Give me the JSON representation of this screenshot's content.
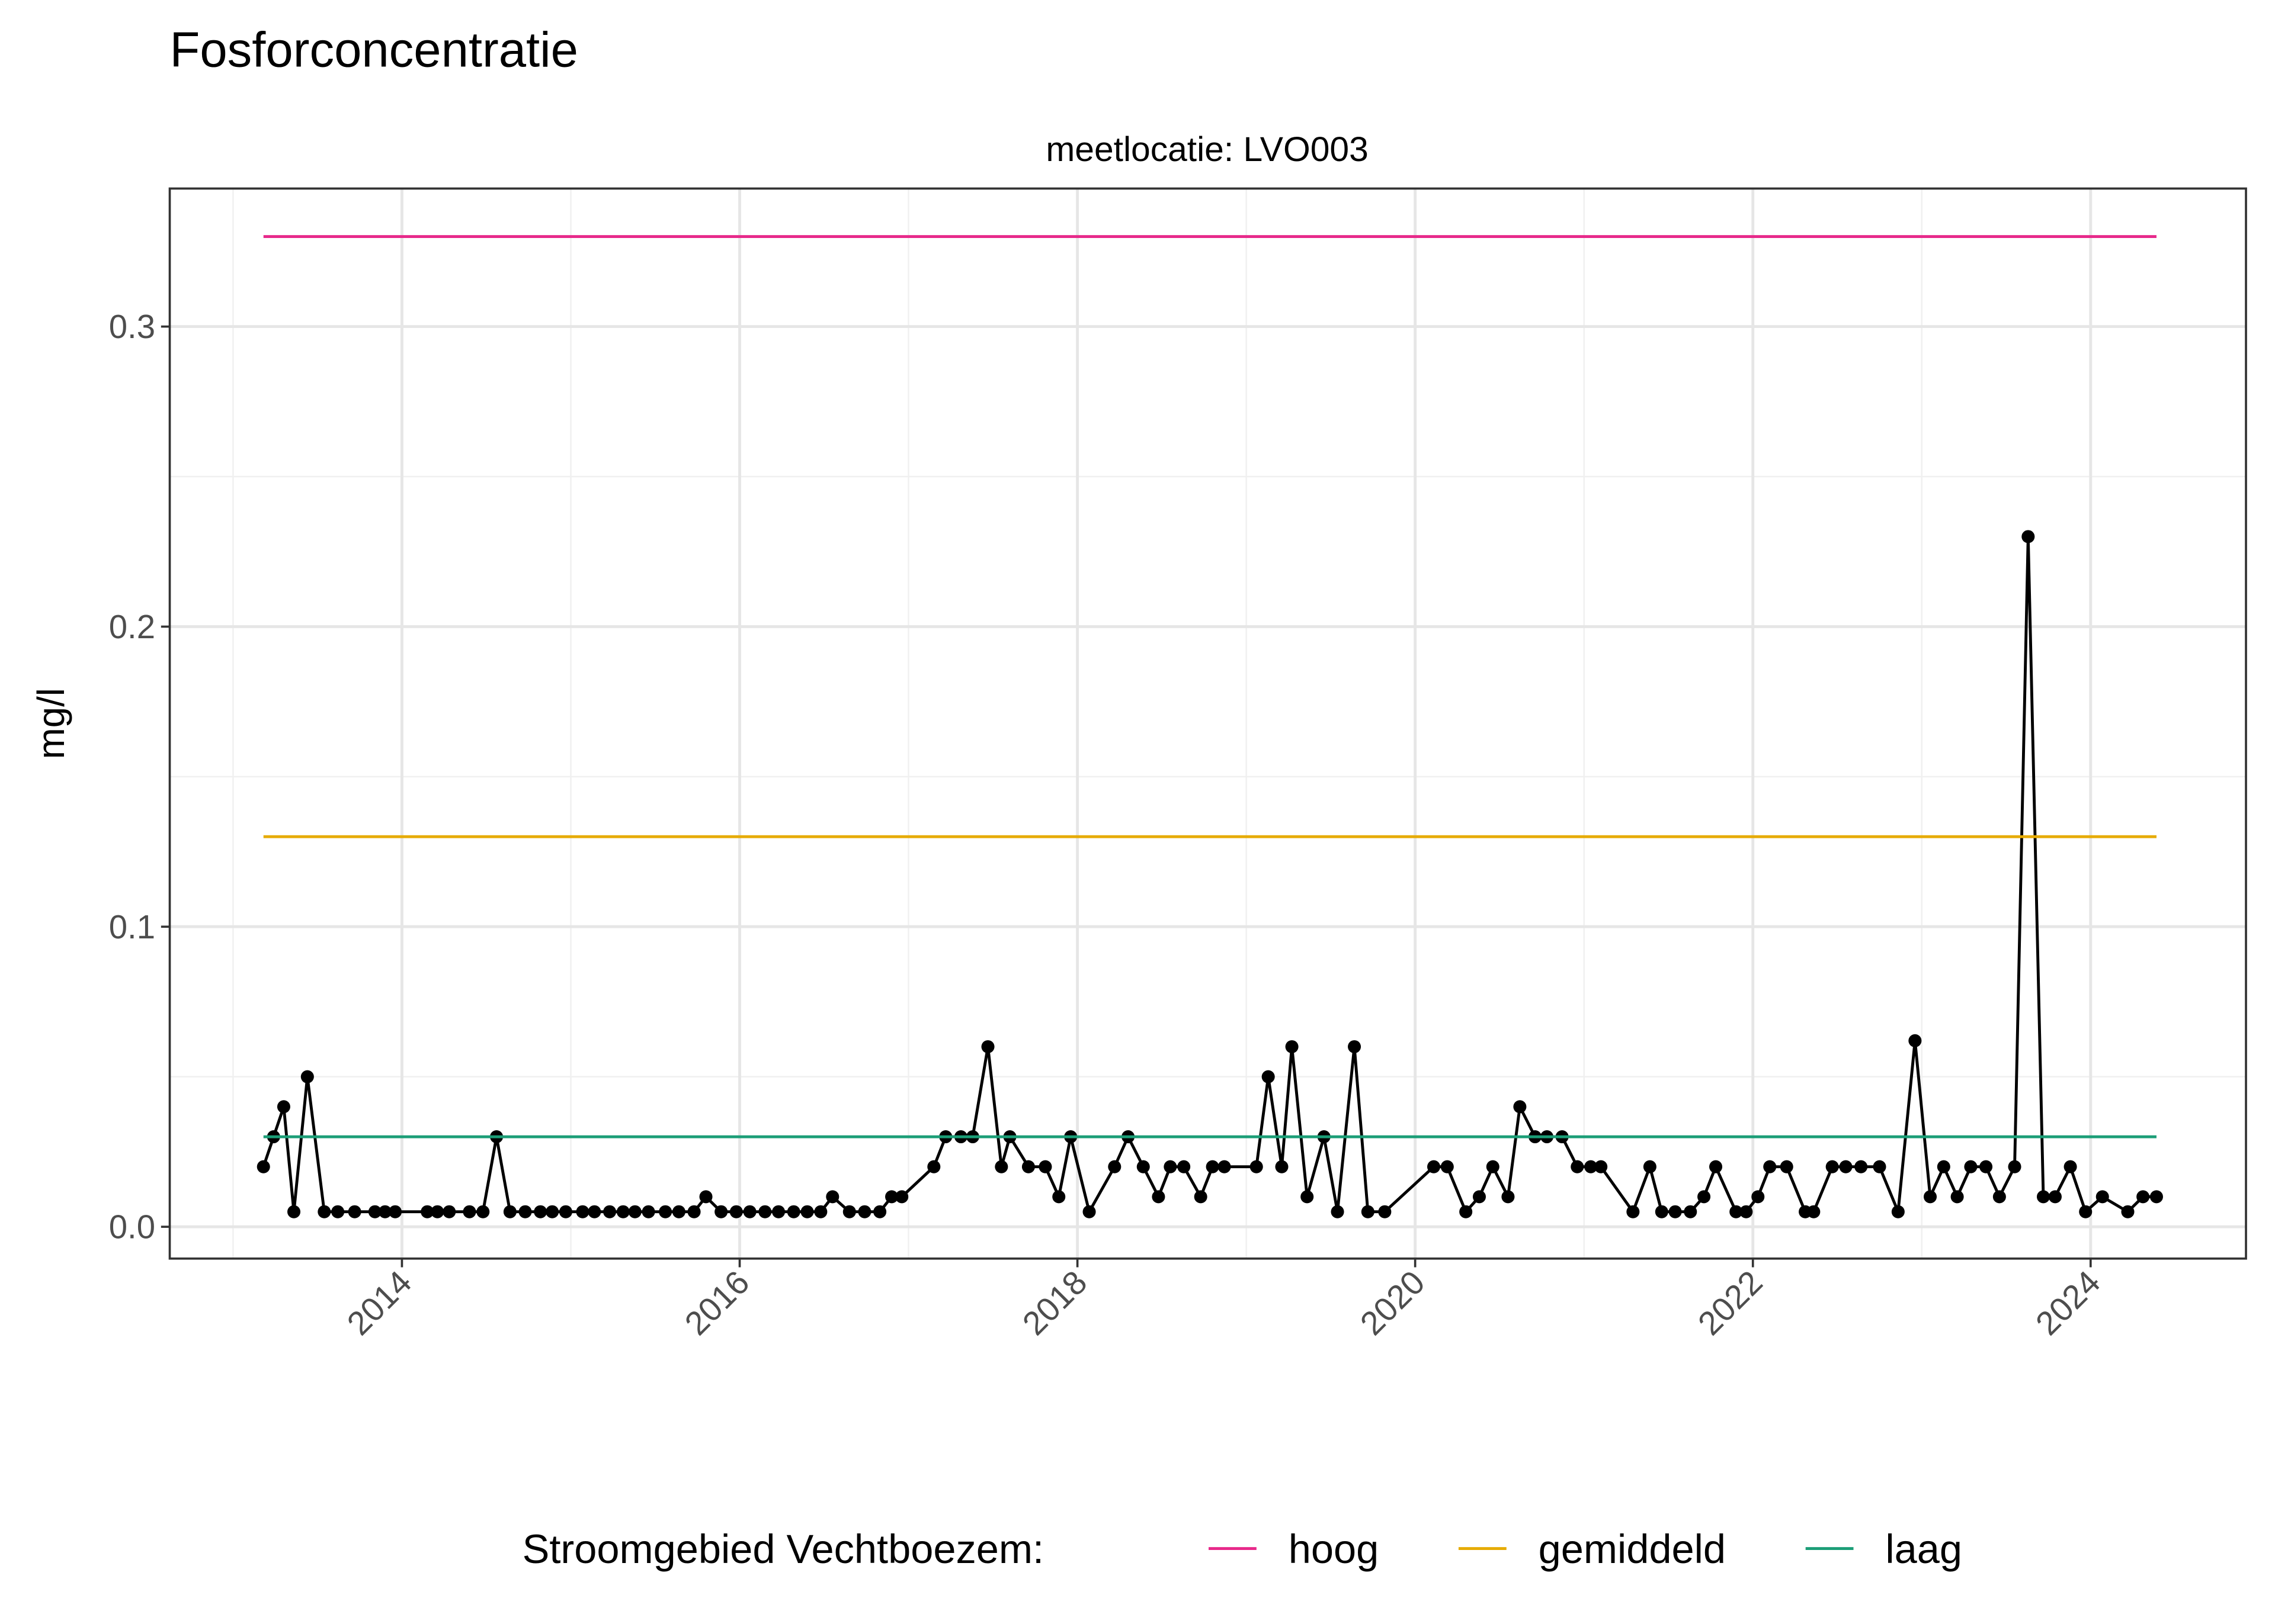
{
  "chart_data": {
    "type": "line",
    "title": "Fosforconcentratie",
    "facet_label": "meetlocatie: LVO003",
    "y_label": "mg/l",
    "legend_title": "Stroomgebied Vechtboezem:",
    "legend_position": "bottom",
    "grid": true,
    "xlim": [
      2012.625,
      2024.92
    ],
    "ylim": [
      -0.0106,
      0.346
    ],
    "xticks": [
      2014,
      2016,
      2018,
      2020,
      2022,
      2024
    ],
    "xminorticks": [
      2013,
      2015,
      2017,
      2019,
      2021,
      2023
    ],
    "yticks": [
      {
        "value": 0,
        "label": "0.0"
      },
      0.1,
      0.2,
      0.3
    ],
    "yminorticks": [
      0.05,
      0.15,
      0.25
    ],
    "series": [
      {
        "color": "#000000",
        "markers": true,
        "x": [
          2013.18,
          2013.24,
          2013.3,
          2013.36,
          2013.44,
          2013.54,
          2013.62,
          2013.72,
          2013.84,
          2013.9,
          2013.96,
          2014.15,
          2014.21,
          2014.28,
          2014.4,
          2014.48,
          2014.56,
          2014.64,
          2014.73,
          2014.82,
          2014.89,
          2014.97,
          2015.07,
          2015.14,
          2015.23,
          2015.31,
          2015.38,
          2015.46,
          2015.56,
          2015.64,
          2015.73,
          2015.8,
          2015.89,
          2015.98,
          2016.06,
          2016.15,
          2016.23,
          2016.32,
          2016.4,
          2016.48,
          2016.55,
          2016.65,
          2016.74,
          2016.83,
          2016.9,
          2016.96,
          2017.15,
          2017.22,
          2017.31,
          2017.38,
          2017.47,
          2017.55,
          2017.6,
          2017.71,
          2017.81,
          2017.89,
          2017.96,
          2018.07,
          2018.22,
          2018.3,
          2018.39,
          2018.48,
          2018.55,
          2018.63,
          2018.73,
          2018.8,
          2018.87,
          2019.06,
          2019.13,
          2019.21,
          2019.27,
          2019.36,
          2019.46,
          2019.54,
          2019.64,
          2019.72,
          2019.82,
          2020.11,
          2020.19,
          2020.3,
          2020.38,
          2020.46,
          2020.55,
          2020.62,
          2020.71,
          2020.78,
          2020.87,
          2020.96,
          2021.04,
          2021.1,
          2021.29,
          2021.39,
          2021.46,
          2021.54,
          2021.63,
          2021.71,
          2021.78,
          2021.9,
          2021.96,
          2022.03,
          2022.1,
          2022.2,
          2022.31,
          2022.36,
          2022.47,
          2022.55,
          2022.64,
          2022.75,
          2022.86,
          2022.96,
          2023.05,
          2023.13,
          2023.21,
          2023.29,
          2023.38,
          2023.46,
          2023.55,
          2023.63,
          2023.72,
          2023.79,
          2023.88,
          2023.97,
          2024.07,
          2024.22,
          2024.31,
          2024.39
        ],
        "values": [
          0.02,
          0.03,
          0.04,
          0.005,
          0.05,
          0.005,
          0.005,
          0.005,
          0.005,
          0.005,
          0.005,
          0.005,
          0.005,
          0.005,
          0.005,
          0.005,
          0.03,
          0.005,
          0.005,
          0.005,
          0.005,
          0.005,
          0.005,
          0.005,
          0.005,
          0.005,
          0.005,
          0.005,
          0.005,
          0.005,
          0.005,
          0.01,
          0.005,
          0.005,
          0.005,
          0.005,
          0.005,
          0.005,
          0.005,
          0.005,
          0.01,
          0.005,
          0.005,
          0.005,
          0.01,
          0.01,
          0.02,
          0.03,
          0.03,
          0.03,
          0.06,
          0.02,
          0.03,
          0.02,
          0.02,
          0.01,
          0.03,
          0.005,
          0.02,
          0.03,
          0.02,
          0.01,
          0.02,
          0.02,
          0.01,
          0.02,
          0.02,
          0.02,
          0.05,
          0.02,
          0.06,
          0.01,
          0.03,
          0.005,
          0.06,
          0.005,
          0.005,
          0.02,
          0.02,
          0.005,
          0.01,
          0.02,
          0.01,
          0.04,
          0.03,
          0.03,
          0.03,
          0.02,
          0.02,
          0.02,
          0.005,
          0.02,
          0.005,
          0.005,
          0.005,
          0.01,
          0.02,
          0.005,
          0.005,
          0.01,
          0.02,
          0.02,
          0.005,
          0.005,
          0.02,
          0.02,
          0.02,
          0.02,
          0.005,
          0.062,
          0.01,
          0.02,
          0.01,
          0.02,
          0.02,
          0.01,
          0.02,
          0.23,
          0.01,
          0.01,
          0.02,
          0.005,
          0.01,
          0.005,
          0.01,
          0.01
        ]
      },
      {
        "name": "hoog",
        "color": "#e7298a",
        "x": [
          2013.18,
          2024.39
        ],
        "values": [
          0.33,
          0.33
        ]
      },
      {
        "name": "gemiddeld",
        "color": "#e6ab02",
        "x": [
          2013.18,
          2024.39
        ],
        "values": [
          0.13,
          0.13
        ]
      },
      {
        "name": "laag",
        "color": "#1b9e77",
        "x": [
          2013.18,
          2024.39
        ],
        "values": [
          0.03,
          0.03
        ]
      }
    ]
  }
}
